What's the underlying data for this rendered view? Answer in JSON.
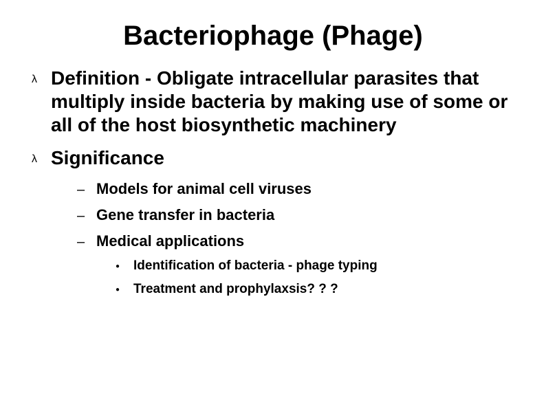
{
  "colors": {
    "background": "#ffffff",
    "text": "#000000"
  },
  "typography": {
    "title_fontsize": 40,
    "level1_fontsize": 28,
    "level2_fontsize": 22,
    "level3_fontsize": 19,
    "font_family": "Arial",
    "weight": "bold"
  },
  "bullets": {
    "level1": "λ",
    "level2": "–",
    "level3": "●"
  },
  "title": "Bacteriophage (Phage)",
  "items": [
    {
      "text": "Definition - Obligate intracellular parasites that multiply inside bacteria by making use of some or all of the host biosynthetic machinery"
    },
    {
      "text": "Significance",
      "children": [
        {
          "text": "Models for animal cell viruses"
        },
        {
          "text": "Gene transfer in bacteria"
        },
        {
          "text": "Medical applications",
          "children": [
            {
              "text": "Identification of bacteria - phage typing"
            },
            {
              "text": "Treatment and prophylaxsis? ? ?"
            }
          ]
        }
      ]
    }
  ]
}
